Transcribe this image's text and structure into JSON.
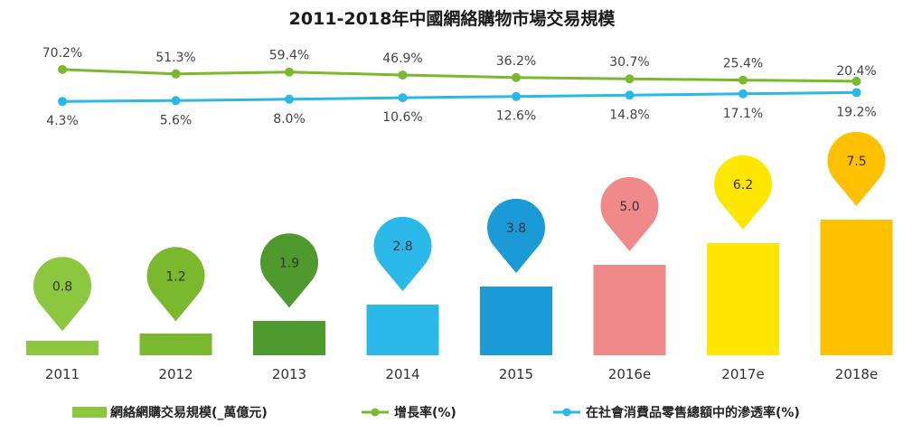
{
  "chart_data": {
    "type": "bar",
    "title": "2011-2018年中國網絡購物市場交易規模",
    "categories": [
      "2011",
      "2012",
      "2013",
      "2014",
      "2015",
      "2016e",
      "2017e",
      "2018e"
    ],
    "series": [
      {
        "name": "網絡網購交易規模(_萬億元)",
        "type": "bar",
        "values": [
          0.8,
          1.2,
          1.9,
          2.8,
          3.8,
          5.0,
          6.2,
          7.5
        ],
        "labels": [
          "0.8",
          "1.2",
          "1.9",
          "2.8",
          "3.8",
          "5.0",
          "6.2",
          "7.5"
        ],
        "colors": [
          "#8dc63f",
          "#7ab92e",
          "#4e9a2e",
          "#29b8e8",
          "#1a9ad6",
          "#f08a8a",
          "#ffe600",
          "#ffc000"
        ]
      },
      {
        "name": "增長率(%)",
        "type": "line",
        "values": [
          70.2,
          51.3,
          59.4,
          46.9,
          36.2,
          30.7,
          25.4,
          20.4
        ],
        "labels": [
          "70.2%",
          "51.3%",
          "59.4%",
          "46.9%",
          "36.2%",
          "30.7%",
          "25.4%",
          "20.4%"
        ],
        "color": "#7ab92e"
      },
      {
        "name": "在社會消費品零售總額中的滲透率(%)",
        "type": "line",
        "values": [
          4.3,
          5.6,
          8.0,
          10.6,
          12.6,
          14.8,
          17.1,
          19.2
        ],
        "labels": [
          "4.3%",
          "5.6%",
          "8.0%",
          "10.6%",
          "12.6%",
          "14.8%",
          "17.1%",
          "19.2%"
        ],
        "color": "#29b8e8"
      }
    ],
    "grid": false,
    "legend": "bottom"
  }
}
